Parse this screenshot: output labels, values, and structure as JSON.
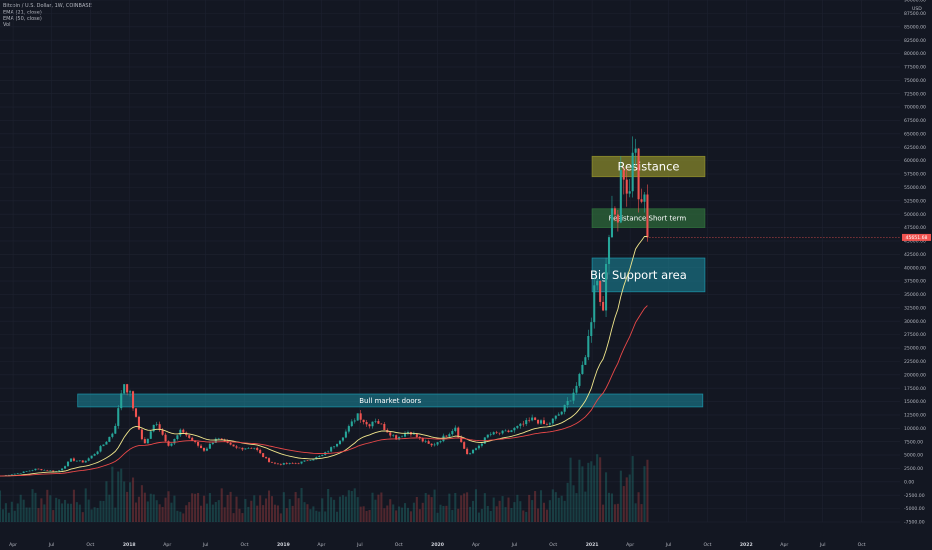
{
  "header": {
    "symbol_line": "Bitcoin / U.S. Dollar, 1W, COINBASE",
    "indicators": [
      "EMA (21, close)",
      "EMA (50, close)",
      "Vol"
    ]
  },
  "currency": "USD",
  "price_tag": "45651.68",
  "colors": {
    "background": "#131722",
    "grid": "#1e2230",
    "up": "#26a69a",
    "down": "#ef5350",
    "ema21": "#f0e68c",
    "ema50": "#e84848",
    "resistance": "#8b8a2b",
    "resistance_short": "#2e6b3a",
    "support": "#1b8ca0",
    "bull_doors": "#1b8ca0",
    "price_tag": "#ef5350"
  },
  "chart_data": {
    "type": "candlestick",
    "timeframe": "1W",
    "ylim": [
      -7500,
      90000
    ],
    "y_ticks": [
      -7500,
      -5000,
      -2500,
      0,
      2500,
      5000,
      7500,
      10000,
      12500,
      15000,
      17500,
      20000,
      22500,
      25000,
      27500,
      30000,
      32500,
      35000,
      37500,
      40000,
      42500,
      45000,
      47500,
      50000,
      52500,
      55000,
      57500,
      60000,
      62500,
      65000,
      67500,
      70000,
      72500,
      75000,
      77500,
      80000,
      82500,
      85000,
      87500,
      90000
    ],
    "y_tick_labels": [
      "-7500.00",
      "-5000.00",
      "-2500.00",
      "0.00",
      "2500.00",
      "5000.00",
      "7500.00",
      "10000.00",
      "12500.00",
      "15000.00",
      "17500.00",
      "20000.00",
      "22500.00",
      "25000.00",
      "27500.00",
      "30000.00",
      "32500.00",
      "35000.00",
      "37500.00",
      "40000.00",
      "42500.00",
      "45000.00",
      "47500.00",
      "50000.00",
      "52500.00",
      "55000.00",
      "57500.00",
      "60000.00",
      "62500.00",
      "65000.00",
      "67500.00",
      "70000.00",
      "72500.00",
      "75000.00",
      "77500.00",
      "80000.00",
      "82500.00",
      "85000.00",
      "87500.00",
      "90000.00"
    ],
    "x_range": [
      "2017-03-01",
      "2022-12-31"
    ],
    "x_ticks": [
      {
        "label": "Apr",
        "date": "2017-04-01",
        "bold": false
      },
      {
        "label": "Jul",
        "date": "2017-07-01",
        "bold": false
      },
      {
        "label": "Oct",
        "date": "2017-10-01",
        "bold": false
      },
      {
        "label": "2018",
        "date": "2018-01-01",
        "bold": true
      },
      {
        "label": "Apr",
        "date": "2018-04-01",
        "bold": false
      },
      {
        "label": "Jul",
        "date": "2018-07-01",
        "bold": false
      },
      {
        "label": "Oct",
        "date": "2018-10-01",
        "bold": false
      },
      {
        "label": "2019",
        "date": "2019-01-01",
        "bold": true
      },
      {
        "label": "Apr",
        "date": "2019-04-01",
        "bold": false
      },
      {
        "label": "Jul",
        "date": "2019-07-01",
        "bold": false
      },
      {
        "label": "Oct",
        "date": "2019-10-01",
        "bold": false
      },
      {
        "label": "2020",
        "date": "2020-01-01",
        "bold": true
      },
      {
        "label": "Apr",
        "date": "2020-04-01",
        "bold": false
      },
      {
        "label": "Jul",
        "date": "2020-07-01",
        "bold": false
      },
      {
        "label": "Oct",
        "date": "2020-10-01",
        "bold": false
      },
      {
        "label": "2021",
        "date": "2021-01-01",
        "bold": true
      },
      {
        "label": "Apr",
        "date": "2021-04-01",
        "bold": false
      },
      {
        "label": "Jul",
        "date": "2021-07-01",
        "bold": false
      },
      {
        "label": "Oct",
        "date": "2021-10-01",
        "bold": false
      },
      {
        "label": "2022",
        "date": "2022-01-01",
        "bold": true
      },
      {
        "label": "Apr",
        "date": "2022-04-01",
        "bold": false
      },
      {
        "label": "Jul",
        "date": "2022-07-01",
        "bold": false
      },
      {
        "label": "Oct",
        "date": "2022-10-01",
        "bold": false
      }
    ],
    "anchors": [
      [
        "2017-03-01",
        1100
      ],
      [
        "2017-05-25",
        2400
      ],
      [
        "2017-07-15",
        1950
      ],
      [
        "2017-08-15",
        4200
      ],
      [
        "2017-09-15",
        3700
      ],
      [
        "2017-10-20",
        6000
      ],
      [
        "2017-11-25",
        9500
      ],
      [
        "2017-12-17",
        19000
      ],
      [
        "2018-01-05",
        16000
      ],
      [
        "2018-02-06",
        7000
      ],
      [
        "2018-03-05",
        11500
      ],
      [
        "2018-04-06",
        6800
      ],
      [
        "2018-05-05",
        9700
      ],
      [
        "2018-06-28",
        5900
      ],
      [
        "2018-07-25",
        8200
      ],
      [
        "2018-09-10",
        6300
      ],
      [
        "2018-10-25",
        6400
      ],
      [
        "2018-11-25",
        4000
      ],
      [
        "2018-12-15",
        3300
      ],
      [
        "2019-02-01",
        3450
      ],
      [
        "2019-04-02",
        4900
      ],
      [
        "2019-05-15",
        8000
      ],
      [
        "2019-06-26",
        12800
      ],
      [
        "2019-07-20",
        10500
      ],
      [
        "2019-08-05",
        11800
      ],
      [
        "2019-09-25",
        8200
      ],
      [
        "2019-10-26",
        9500
      ],
      [
        "2019-12-17",
        6700
      ],
      [
        "2020-02-12",
        10300
      ],
      [
        "2020-03-13",
        5000
      ],
      [
        "2020-04-30",
        8800
      ],
      [
        "2020-06-15",
        9300
      ],
      [
        "2020-08-15",
        11800
      ],
      [
        "2020-09-15",
        10500
      ],
      [
        "2020-10-25",
        13500
      ],
      [
        "2020-12-01",
        19000
      ],
      [
        "2020-12-28",
        29000
      ],
      [
        "2021-01-08",
        40000
      ],
      [
        "2021-01-25",
        32000
      ],
      [
        "2021-02-20",
        57000
      ],
      [
        "2021-02-27",
        46000
      ],
      [
        "2021-03-13",
        61000
      ],
      [
        "2021-03-25",
        52000
      ],
      [
        "2021-04-13",
        63000
      ],
      [
        "2021-04-25",
        49000
      ],
      [
        "2021-05-09",
        58000
      ],
      [
        "2021-05-16",
        45651
      ]
    ],
    "ema21_end": 47000,
    "ema50_end": 34000,
    "last_price": 45651.68,
    "zones": [
      {
        "name": "resistance",
        "label": "Resistance",
        "from": "2021-01-01",
        "to": "2021-09-25",
        "y_low": 57000,
        "y_high": 60800
      },
      {
        "name": "resistance-short-term",
        "label": "Resistance Short term",
        "from": "2021-01-01",
        "to": "2021-09-25",
        "y_low": 47500,
        "y_high": 51000
      },
      {
        "name": "big-support-area",
        "label": "Big Support area",
        "from": "2021-01-01",
        "to": "2021-09-25",
        "y_low": 35500,
        "y_high": 41800
      },
      {
        "name": "bull-market-doors",
        "label": "Bull market doors",
        "from": "2017-09-01",
        "to": "2021-09-20",
        "y_low": 14000,
        "y_high": 16400
      }
    ]
  },
  "zone_labels": {
    "resistance": "Resistance",
    "resistance_short": "Resistance Short term",
    "support": "Big Support area",
    "bull_doors": "Bull market doors"
  }
}
